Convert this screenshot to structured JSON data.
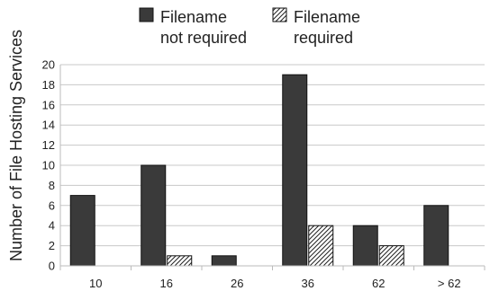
{
  "chart_data": {
    "type": "bar",
    "categories": [
      "10",
      "16",
      "26",
      "36",
      "62",
      "> 62"
    ],
    "series": [
      {
        "name": [
          "Filename",
          "not required"
        ],
        "values": [
          7,
          10,
          1,
          19,
          4,
          6
        ],
        "fill": "solid",
        "color": "#3a3a3a"
      },
      {
        "name": [
          "Filename",
          "required"
        ],
        "values": [
          0,
          1,
          0,
          4,
          2,
          0
        ],
        "fill": "hatched",
        "color": "#ffffff"
      }
    ],
    "xlabel": "",
    "ylabel": "Number of File Hosting Services",
    "ylim": [
      0,
      20
    ],
    "yticks": [
      0,
      2,
      4,
      6,
      8,
      10,
      12,
      14,
      16,
      18,
      20
    ],
    "grid": "horizontal",
    "legend_position": "top"
  }
}
